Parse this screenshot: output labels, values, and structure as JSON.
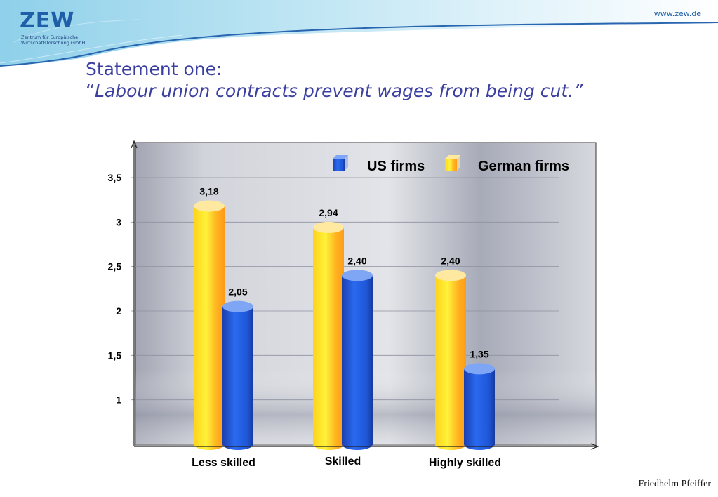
{
  "header": {
    "logo_text": "ZEW",
    "logo_sub_1": "Zentrum für Europäische",
    "logo_sub_2": "Wirtschaftsforschung GmbH",
    "url": "www.zew.de"
  },
  "slide": {
    "title_line1": "Statement one:",
    "quote_open": "“",
    "title_line2": "Labour union contracts prevent wages from being cut.”",
    "author": "Friedhelm Pfeiffer"
  },
  "colors": {
    "us_firms": "#1f5fe0",
    "german_firms": "#ffd21a",
    "title": "#3b3fa0",
    "brand": "#1f5fa8"
  },
  "chart_data": {
    "type": "bar",
    "categories": [
      "Less skilled",
      "Skilled",
      "Highly skilled"
    ],
    "series": [
      {
        "name": "German firms",
        "values": [
          3.18,
          2.94,
          2.4
        ],
        "labels": [
          "3,18",
          "2,94",
          "2,40"
        ]
      },
      {
        "name": "US firms",
        "values": [
          2.05,
          2.4,
          1.35
        ],
        "labels": [
          "2,05",
          "2,40",
          "1,35"
        ]
      }
    ],
    "legend_order": [
      "US firms",
      "German firms"
    ],
    "y_ticks": [
      1,
      1.5,
      2,
      2.5,
      3,
      3.5
    ],
    "y_tick_labels": [
      "1",
      "1,5",
      "2",
      "2,5",
      "3",
      "3,5"
    ],
    "ylim": [
      0.5,
      3.5
    ],
    "grid": true,
    "legend_position": "top-right"
  }
}
